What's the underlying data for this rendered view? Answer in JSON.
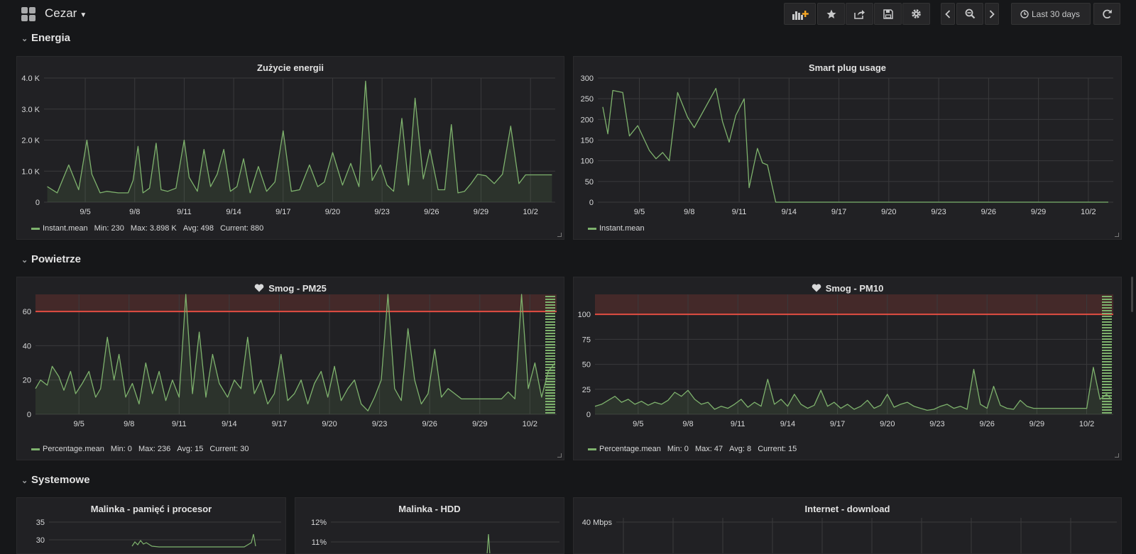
{
  "dashboard": {
    "title": "Cezar"
  },
  "toolbar": {
    "time_range": "Last 30 days"
  },
  "rows": {
    "energia": "Energia",
    "powietrze": "Powietrze",
    "systemowe": "Systemowe"
  },
  "colors": {
    "series": "#7eb26d",
    "threshold": "#e24d42",
    "background": "#161719",
    "panel": "#212124"
  },
  "icons": [
    "grid-icon",
    "add-panel-icon",
    "star-icon",
    "share-icon",
    "save-icon",
    "gear-icon",
    "chevron-left-icon",
    "zoom-out-icon",
    "chevron-right-icon",
    "clock-icon",
    "refresh-icon",
    "heart-icon"
  ],
  "panels": {
    "energy": {
      "title": "Zużycie energii",
      "legend": {
        "name": "Instant.mean",
        "min": "Min: 230",
        "max": "Max: 3.898 K",
        "avg": "Avg: 498",
        "current": "Current: 880"
      },
      "chart_data": {
        "type": "area",
        "xtick_labels": [
          "9/5",
          "9/8",
          "9/11",
          "9/14",
          "9/17",
          "9/20",
          "9/23",
          "9/26",
          "9/29",
          "10/2"
        ],
        "ytick_labels": [
          "0",
          "1.0 K",
          "2.0 K",
          "3.0 K",
          "4.0 K"
        ],
        "ylim": [
          0,
          4000
        ],
        "grid": true,
        "legend_position": "bottom-left",
        "series": [
          {
            "name": "Instant.mean",
            "x": [
              2.7,
              3.3,
              4.0,
              4.6,
              5.1,
              5.4,
              5.9,
              6.3,
              7.0,
              7.6,
              7.9,
              8.2,
              8.5,
              8.9,
              9.3,
              9.6,
              10.0,
              10.5,
              11.0,
              11.3,
              11.8,
              12.2,
              12.6,
              13.0,
              13.4,
              13.8,
              14.2,
              14.6,
              15.0,
              15.5,
              16.0,
              16.5,
              17.0,
              17.5,
              18.0,
              18.6,
              19.1,
              19.5,
              20.0,
              20.6,
              21.1,
              21.6,
              22.0,
              22.4,
              22.9,
              23.3,
              23.7,
              24.2,
              24.6,
              25.0,
              25.5,
              25.9,
              26.4,
              26.8,
              27.2,
              27.6,
              28.0,
              28.4,
              28.8,
              29.3,
              29.8,
              30.3,
              30.8,
              31.3,
              31.7,
              32.2,
              32.6,
              33.0,
              33.3
            ],
            "y": [
              500,
              300,
              1200,
              400,
              2000,
              900,
              300,
              350,
              300,
              300,
              700,
              1800,
              300,
              450,
              1900,
              400,
              350,
              450,
              2000,
              800,
              350,
              1700,
              500,
              900,
              1700,
              350,
              500,
              1400,
              300,
              1150,
              350,
              650,
              2300,
              350,
              400,
              1200,
              500,
              650,
              1600,
              550,
              1250,
              500,
              3900,
              700,
              1200,
              550,
              350,
              2700,
              550,
              3350,
              750,
              1700,
              400,
              400,
              2500,
              300,
              350,
              600,
              900,
              850,
              600,
              900,
              2450,
              600,
              880,
              880,
              880,
              880,
              880
            ]
          }
        ]
      }
    },
    "plug": {
      "title": "Smart plug usage",
      "legend": {
        "name": "Instant.mean"
      },
      "chart_data": {
        "type": "line",
        "xtick_labels": [
          "9/5",
          "9/8",
          "9/11",
          "9/14",
          "9/17",
          "9/20",
          "9/23",
          "9/26",
          "9/29",
          "10/2"
        ],
        "ytick_labels": [
          "0",
          "50",
          "100",
          "150",
          "200",
          "250",
          "300"
        ],
        "ylim": [
          0,
          300
        ],
        "grid": true,
        "legend_position": "bottom-left",
        "series": [
          {
            "name": "Instant.mean",
            "x": [
              2.8,
              3.1,
              3.4,
              4.0,
              4.4,
              4.9,
              5.6,
              6.0,
              6.4,
              6.8,
              7.3,
              7.9,
              8.3,
              9.6,
              10.0,
              10.4,
              10.8,
              11.3,
              11.6,
              12.1,
              12.4,
              12.7,
              13.2,
              13.7,
              14.2,
              14.6,
              15.0,
              15.7,
              16.1,
              16.6,
              17.1,
              17.5,
              18.0,
              18.5,
              18.9,
              19.3,
              19.6,
              20.0,
              20.4,
              20.8,
              21.2,
              21.6,
              22.0,
              22.4,
              22.8,
              23.2,
              23.6,
              24.0,
              24.4,
              24.8,
              25.2,
              25.6,
              26.0,
              26.4,
              26.8,
              27.2,
              27.6,
              28.0,
              28.4,
              28.8,
              29.2,
              29.6,
              30.0,
              30.4,
              30.8,
              31.2,
              31.6,
              32.0,
              32.4,
              32.8,
              33.2
            ],
            "y": [
              230,
              165,
              270,
              265,
              160,
              185,
              125,
              105,
              120,
              100,
              265,
              205,
              180,
              275,
              195,
              145,
              210,
              250,
              35,
              130,
              95,
              90,
              0,
              0,
              0,
              0,
              0,
              0,
              0,
              0,
              0,
              0,
              0,
              0,
              0,
              0,
              0,
              0,
              0,
              0,
              0,
              0,
              0,
              0,
              0,
              0,
              0,
              0,
              0,
              0,
              0,
              0,
              0,
              0,
              0,
              0,
              0,
              0,
              0,
              0,
              0,
              0,
              0,
              0,
              0,
              0,
              0,
              0,
              0,
              0,
              0
            ]
          }
        ]
      }
    },
    "pm25": {
      "title": "Smog - PM25",
      "legend": {
        "name": "Percentage.mean",
        "min": "Min: 0",
        "max": "Max: 236",
        "avg": "Avg: 15",
        "current": "Current: 30"
      },
      "chart_data": {
        "type": "area",
        "xtick_labels": [
          "9/5",
          "9/8",
          "9/11",
          "9/14",
          "9/17",
          "9/20",
          "9/23",
          "9/26",
          "9/29",
          "10/2"
        ],
        "ytick_labels": [
          "0",
          "20",
          "40",
          "60"
        ],
        "ylim": [
          0,
          70
        ],
        "threshold": 60,
        "grid": true,
        "legend_position": "bottom-left",
        "series": [
          {
            "name": "Percentage.mean",
            "x": [
              2.4,
              2.7,
              3.1,
              3.4,
              3.8,
              4.1,
              4.5,
              4.8,
              5.2,
              5.6,
              6.0,
              6.3,
              6.7,
              7.1,
              7.4,
              7.8,
              8.2,
              8.6,
              9.0,
              9.4,
              9.8,
              10.2,
              10.6,
              11.0,
              11.4,
              11.8,
              12.2,
              12.6,
              13.0,
              13.4,
              13.9,
              14.3,
              14.7,
              15.1,
              15.5,
              15.9,
              16.3,
              16.7,
              17.1,
              17.5,
              17.9,
              18.3,
              18.7,
              19.1,
              19.5,
              19.9,
              20.3,
              20.7,
              21.1,
              21.5,
              21.9,
              22.3,
              22.7,
              23.1,
              23.5,
              23.9,
              24.3,
              24.7,
              25.1,
              25.5,
              25.9,
              26.3,
              26.7,
              27.1,
              27.5,
              27.9,
              28.3,
              28.7,
              29.1,
              29.5,
              29.9,
              30.3,
              30.7,
              31.1,
              31.5,
              31.9,
              32.3,
              32.7,
              33.1,
              33.5
            ],
            "y": [
              15,
              20,
              17,
              28,
              22,
              14,
              25,
              12,
              18,
              25,
              10,
              15,
              45,
              20,
              35,
              10,
              18,
              6,
              30,
              12,
              25,
              8,
              20,
              10,
              70,
              12,
              48,
              10,
              35,
              18,
              10,
              20,
              15,
              45,
              12,
              20,
              6,
              12,
              35,
              8,
              12,
              20,
              6,
              18,
              25,
              10,
              28,
              8,
              15,
              20,
              6,
              2,
              10,
              20,
              70,
              15,
              8,
              50,
              20,
              6,
              12,
              38,
              10,
              15,
              12,
              9,
              9,
              9,
              9,
              9,
              9,
              9,
              13,
              9,
              70,
              15,
              30,
              10,
              25,
              30
            ]
          }
        ]
      }
    },
    "pm10": {
      "title": "Smog - PM10",
      "legend": {
        "name": "Percentage.mean",
        "min": "Min: 0",
        "max": "Max: 47",
        "avg": "Avg: 8",
        "current": "Current: 15"
      },
      "chart_data": {
        "type": "area",
        "xtick_labels": [
          "9/5",
          "9/8",
          "9/11",
          "9/14",
          "9/17",
          "9/20",
          "9/23",
          "9/26",
          "9/29",
          "10/2"
        ],
        "ytick_labels": [
          "0",
          "25",
          "50",
          "75",
          "100"
        ],
        "ylim": [
          0,
          120
        ],
        "threshold": 100,
        "grid": true,
        "legend_position": "bottom-left",
        "series": [
          {
            "name": "Percentage.mean",
            "x": [
              2.4,
              2.8,
              3.2,
              3.6,
              4.0,
              4.4,
              4.8,
              5.2,
              5.6,
              6.0,
              6.4,
              6.8,
              7.2,
              7.6,
              8.0,
              8.4,
              8.8,
              9.2,
              9.6,
              10.0,
              10.4,
              10.8,
              11.2,
              11.6,
              12.0,
              12.4,
              12.8,
              13.2,
              13.6,
              14.0,
              14.4,
              14.8,
              15.2,
              15.6,
              16.0,
              16.4,
              16.8,
              17.2,
              17.6,
              18.0,
              18.4,
              18.8,
              19.2,
              19.6,
              20.0,
              20.4,
              20.8,
              21.2,
              21.6,
              22.0,
              22.4,
              22.8,
              23.2,
              23.6,
              24.0,
              24.4,
              24.8,
              25.2,
              25.6,
              26.0,
              26.4,
              26.8,
              27.2,
              27.6,
              28.0,
              28.4,
              28.8,
              29.2,
              29.6,
              30.0,
              30.4,
              30.8,
              31.2,
              31.6,
              32.0,
              32.4,
              32.8,
              33.2,
              33.5
            ],
            "y": [
              8,
              10,
              14,
              18,
              12,
              15,
              10,
              13,
              9,
              12,
              10,
              14,
              22,
              18,
              24,
              15,
              10,
              12,
              5,
              8,
              6,
              10,
              15,
              7,
              12,
              8,
              35,
              10,
              15,
              8,
              20,
              10,
              6,
              9,
              24,
              8,
              12,
              6,
              10,
              5,
              8,
              14,
              6,
              9,
              20,
              7,
              10,
              12,
              8,
              6,
              4,
              5,
              8,
              10,
              6,
              8,
              5,
              45,
              10,
              6,
              28,
              9,
              6,
              5,
              14,
              8,
              6,
              6,
              6,
              6,
              6,
              6,
              6,
              6,
              6,
              47,
              15,
              20,
              15
            ]
          }
        ]
      }
    },
    "malinka": {
      "title": "Malinka - pamięć i procesor",
      "ytick_labels": [
        "35",
        "30"
      ]
    },
    "hdd": {
      "title": "Malinka - HDD",
      "ytick_labels": [
        "12%",
        "11%"
      ]
    },
    "internet": {
      "title": "Internet - download",
      "ytick_labels": [
        "40 Mbps"
      ]
    }
  }
}
